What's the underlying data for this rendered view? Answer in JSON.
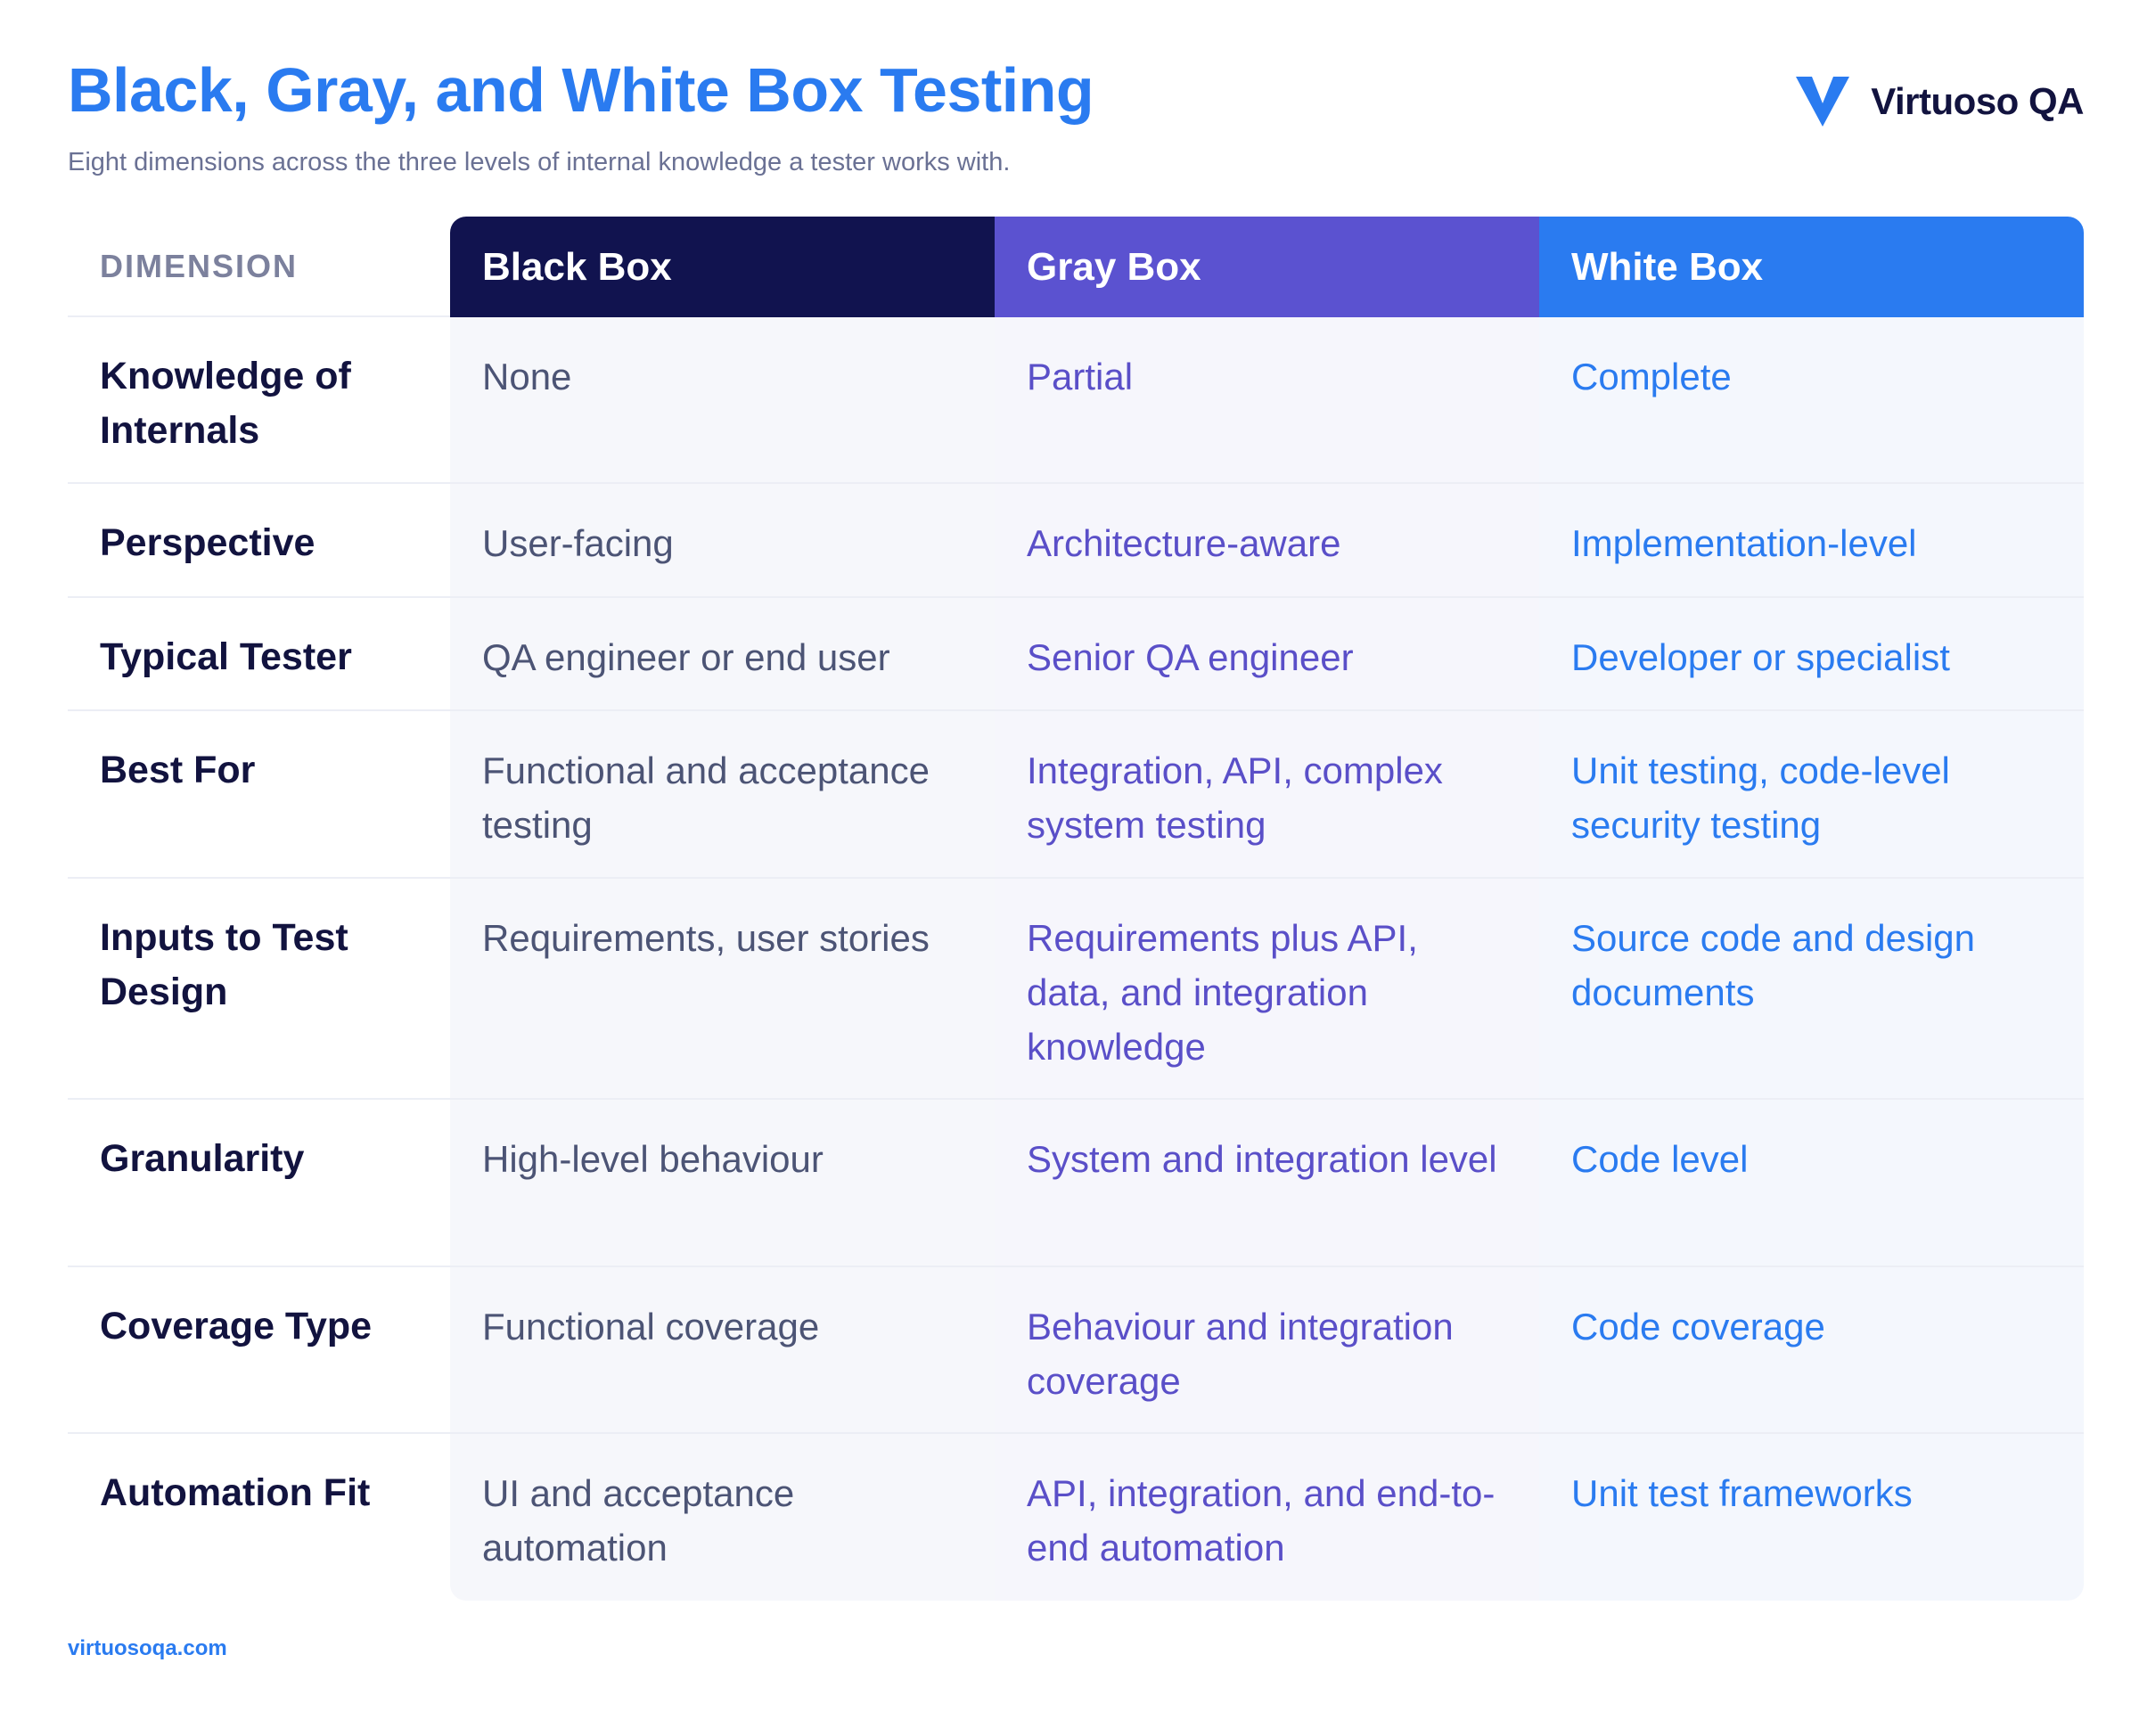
{
  "header": {
    "title": "Black, Gray, and White Box Testing",
    "subtitle": "Eight dimensions across the three levels of internal knowledge a tester works with."
  },
  "brand": {
    "name": "Virtuoso QA",
    "icon": "v-logo-icon",
    "color": "#2a7bf0"
  },
  "table": {
    "columns": [
      {
        "label": "DIMENSION"
      },
      {
        "label": "Black Box",
        "color": "#11134f"
      },
      {
        "label": "Gray Box",
        "color": "#5b52d0"
      },
      {
        "label": "White Box",
        "color": "#2a7bf0"
      }
    ],
    "rows": [
      {
        "dimension": "Knowledge of Internals",
        "black": "None",
        "gray": "Partial",
        "white": "Complete"
      },
      {
        "dimension": "Perspective",
        "black": "User-facing",
        "gray": "Architecture-aware",
        "white": "Implementation-level"
      },
      {
        "dimension": "Typical Tester",
        "black": "QA engineer or end user",
        "gray": "Senior QA engineer",
        "white": "Developer or specialist"
      },
      {
        "dimension": "Best For",
        "black": "Functional and acceptance testing",
        "gray": "Integration, API, complex system testing",
        "white": "Unit testing, code-level security testing"
      },
      {
        "dimension": "Inputs to Test Design",
        "black": "Requirements, user stories",
        "gray": "Requirements plus API, data, and integration knowledge",
        "white": "Source code and design documents"
      },
      {
        "dimension": "Granularity",
        "black": "High-level behaviour",
        "gray": "System and integration level",
        "white": "Code level"
      },
      {
        "dimension": "Coverage Type",
        "black": "Functional coverage",
        "gray": "Behaviour and integration coverage",
        "white": "Code coverage"
      },
      {
        "dimension": "Automation Fit",
        "black": "UI and acceptance automation",
        "gray": "API, integration, and end-to-end automation",
        "white": "Unit test frameworks"
      }
    ]
  },
  "footer": {
    "url": "virtuosoqa.com"
  }
}
